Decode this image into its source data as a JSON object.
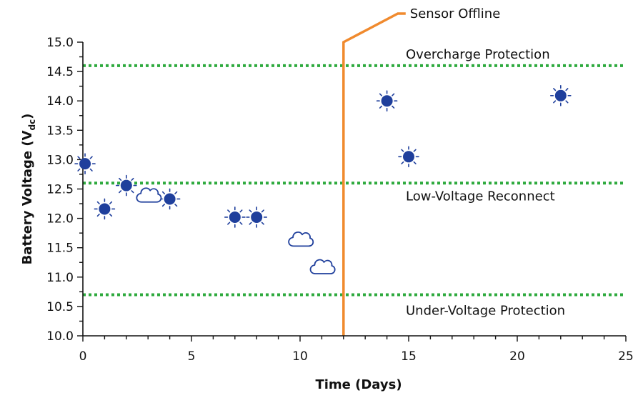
{
  "chart_data": {
    "type": "scatter",
    "title": "",
    "xlabel": "Time (Days)",
    "ylabel_main": "Battery Voltage (V",
    "ylabel_sub": "dc",
    "ylabel_close": ")",
    "xlim": [
      0,
      25
    ],
    "ylim": [
      10.0,
      15.0
    ],
    "x_ticks": [
      0,
      5,
      10,
      15,
      20,
      25
    ],
    "x_tick_labels": [
      "0",
      "5",
      "10",
      "15",
      "20",
      "25"
    ],
    "y_ticks": [
      10.0,
      10.5,
      11.0,
      11.5,
      12.0,
      12.5,
      13.0,
      13.5,
      14.0,
      14.5,
      15.0
    ],
    "y_tick_labels": [
      "10.0",
      "10.5",
      "11.0",
      "11.5",
      "12.0",
      "12.5",
      "13.0",
      "13.5",
      "14.0",
      "14.5",
      "15.0"
    ],
    "grid": false,
    "legend": "none",
    "series": [
      {
        "name": "Sunny",
        "marker": "sun-icon",
        "color": "#1f3f9c",
        "x": [
          0.1,
          1,
          2,
          4,
          7,
          8,
          14,
          15,
          22
        ],
        "y": [
          12.93,
          12.16,
          12.56,
          12.33,
          12.02,
          12.02,
          14.0,
          13.05,
          14.09
        ]
      },
      {
        "name": "Cloudy",
        "marker": "cloud-icon",
        "color": "#1f3f9c",
        "x": [
          3,
          10,
          11
        ],
        "y": [
          12.4,
          11.65,
          11.18
        ]
      }
    ],
    "reference_lines": [
      {
        "name": "overcharge-protection",
        "label": "Overcharge Protection",
        "y": 14.6,
        "color": "#2eaa3e"
      },
      {
        "name": "low-voltage-reconnect",
        "label": "Low-Voltage Reconnect",
        "y": 12.6,
        "color": "#2eaa3e"
      },
      {
        "name": "under-voltage-protection",
        "label": "Under-Voltage Protection",
        "y": 10.7,
        "color": "#2eaa3e"
      }
    ],
    "event_line": {
      "label": "Sensor Offline",
      "x": 12,
      "color": "#f08a2e"
    }
  }
}
